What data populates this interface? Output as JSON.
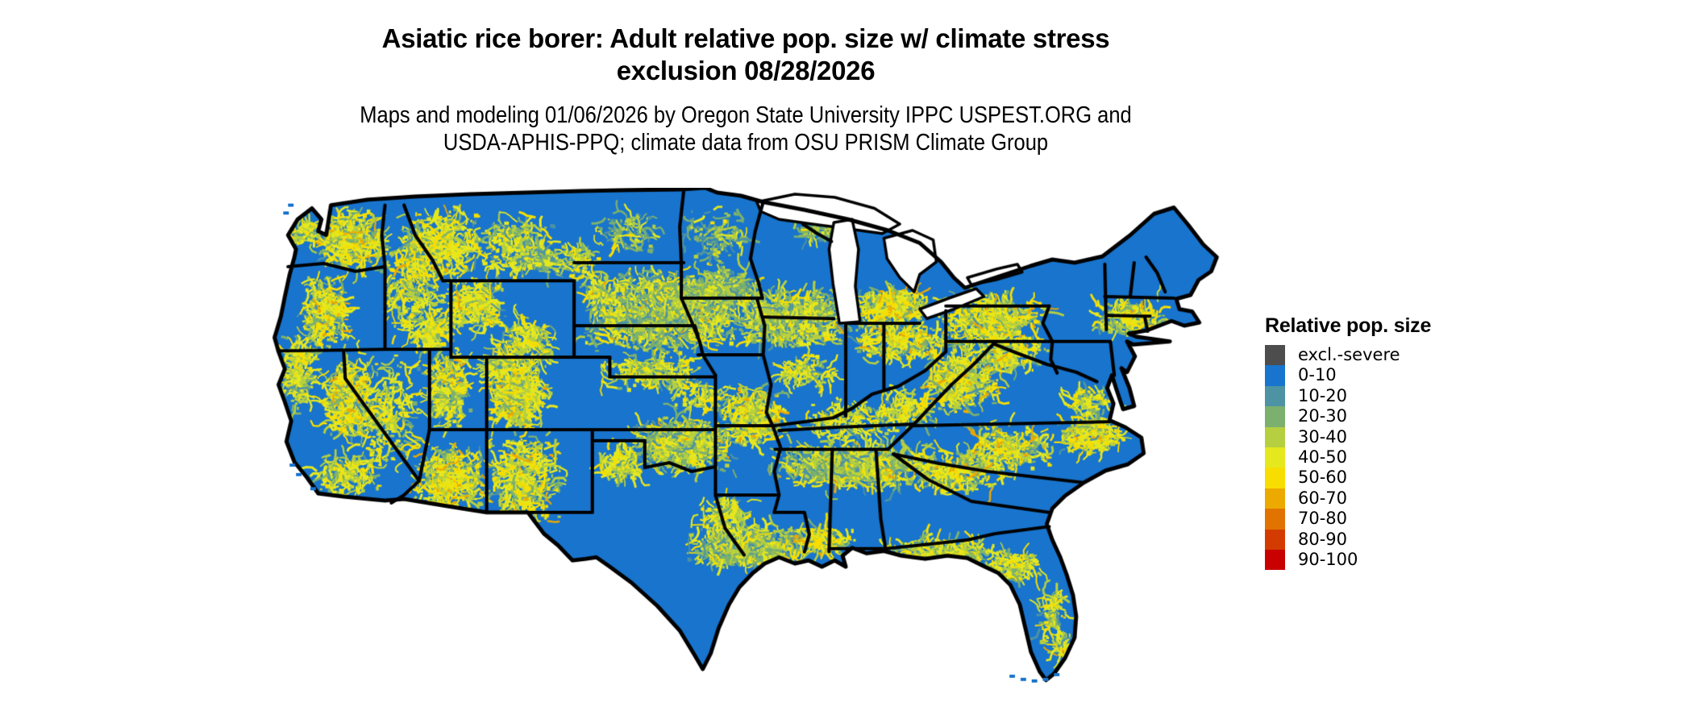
{
  "title": {
    "line1": "Asiatic rice borer: Adult relative pop. size w/ climate stress",
    "line2": "exclusion 08/28/2026"
  },
  "subtitle": {
    "line1": "Maps and modeling 01/06/2026 by Oregon State University IPPC USPEST.ORG and",
    "line2": "USDA-APHIS-PPQ; climate data from OSU PRISM Climate Group"
  },
  "legend": {
    "title": "Relative pop. size",
    "items": [
      {
        "label": "excl.-severe",
        "color": "#4d4d4d"
      },
      {
        "label": "0-10",
        "color": "#1874cd"
      },
      {
        "label": "10-20",
        "color": "#4d93a3"
      },
      {
        "label": "20-30",
        "color": "#7bb06f"
      },
      {
        "label": "30-40",
        "color": "#b5cf40"
      },
      {
        "label": "40-50",
        "color": "#e6e81e"
      },
      {
        "label": "50-60",
        "color": "#f7de00"
      },
      {
        "label": "60-70",
        "color": "#eca900"
      },
      {
        "label": "70-80",
        "color": "#e17300"
      },
      {
        "label": "80-90",
        "color": "#d43b00"
      },
      {
        "label": "90-100",
        "color": "#c80000"
      }
    ]
  },
  "map": {
    "region": "Conterminous United States",
    "base_fill": "#1874cd",
    "border_color": "#000000",
    "water_color": "#ffffff"
  }
}
